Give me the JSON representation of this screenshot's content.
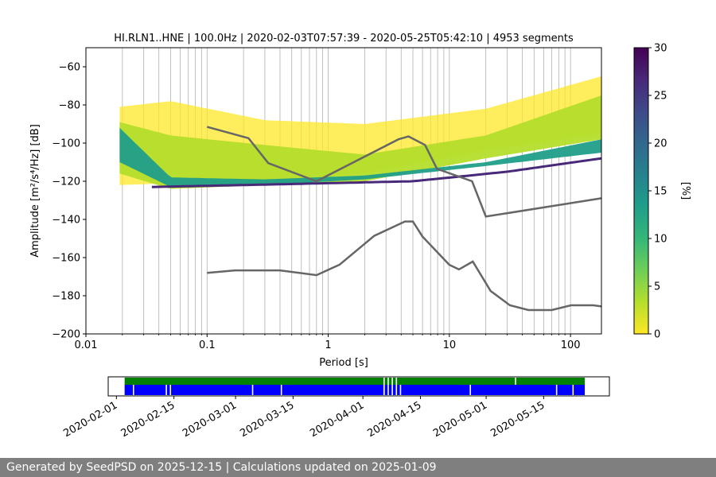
{
  "chart_data": [
    {
      "type": "heatmap",
      "title": "HI.RLN1..HNE | 100.0Hz | 2020-02-03T07:57:39 - 2020-05-25T05:42:10 | 4953 segments",
      "xlabel": "Period [s]",
      "ylabel": "Amplitude [m²/s⁴/Hz] [dB]",
      "x_scale": "log",
      "xlim": [
        0.01,
        180
      ],
      "ylim": [
        -200,
        -50
      ],
      "x_ticks": [
        {
          "value": 0.01,
          "label": "0.01"
        },
        {
          "value": 0.1,
          "label": "0.1"
        },
        {
          "value": 1,
          "label": "1"
        },
        {
          "value": 10,
          "label": "10"
        },
        {
          "value": 100,
          "label": "100"
        }
      ],
      "y_ticks": [
        {
          "value": -60,
          "label": "−60"
        },
        {
          "value": -80,
          "label": "−80"
        },
        {
          "value": -100,
          "label": "−100"
        },
        {
          "value": -120,
          "label": "−120"
        },
        {
          "value": -140,
          "label": "−140"
        },
        {
          "value": -160,
          "label": "−160"
        },
        {
          "value": -180,
          "label": "−180"
        },
        {
          "value": -200,
          "label": "−200"
        }
      ],
      "grid": "vertical lines at 1-2-3-...-9 periods per decade",
      "colorbar": {
        "label": "[%]",
        "range": [
          0,
          30
        ],
        "ticks": [
          {
            "value": 0,
            "label": "0"
          },
          {
            "value": 5,
            "label": "5"
          },
          {
            "value": 10,
            "label": "10"
          },
          {
            "value": 15,
            "label": "15"
          },
          {
            "value": 20,
            "label": "20"
          },
          {
            "value": 25,
            "label": "25"
          },
          {
            "value": 30,
            "label": "30"
          }
        ],
        "colormap": "viridis_r",
        "stops": [
          "#fde725",
          "#b5de2b",
          "#6ece58",
          "#35b779",
          "#1f9e89",
          "#26828e",
          "#31688e",
          "#3e4989",
          "#482878",
          "#440154"
        ]
      },
      "heatmap_bands": [
        {
          "level": "sparse (~1%)",
          "period": [
            0.019,
            180
          ],
          "lower_db": [
            -122,
            -121,
            -120,
            -116,
            -104,
            -95
          ],
          "upper_db": [
            -81,
            -78,
            -88,
            -90,
            -82,
            -65
          ]
        },
        {
          "level": "low (~3%)",
          "period": [
            0.019,
            180
          ],
          "lower_db": [
            -116,
            -124,
            -122,
            -120,
            -108,
            -98
          ],
          "upper_db": [
            -89,
            -96,
            -101,
            -106,
            -96,
            -75
          ]
        },
        {
          "level": "medium (~12%)",
          "period": [
            0.019,
            180
          ],
          "lower_db": [
            -110,
            -123,
            -122,
            -119,
            -112,
            -105
          ],
          "upper_db": [
            -92,
            -118,
            -119,
            -117,
            -110,
            -98
          ]
        },
        {
          "level": "mode (~28%)",
          "period": [
            0.035,
            180
          ],
          "db": [
            -123,
            -122,
            -121,
            -120,
            -115,
            -108
          ]
        }
      ],
      "noise_models": [
        {
          "name": "",
          "role": "NHNM",
          "x": [
            0.1,
            0.22,
            0.32,
            0.8,
            3.8,
            4.6,
            6.3,
            7.9,
            15.4,
            20.0,
            180.0
          ],
          "y": [
            -91.5,
            -97.4,
            -110.5,
            -120.0,
            -98.0,
            -96.5,
            -101.0,
            -113.5,
            -120.0,
            -138.5,
            -128.9
          ]
        },
        {
          "name": "",
          "role": "NLNM",
          "x": [
            0.1,
            0.17,
            0.4,
            0.8,
            1.24,
            2.4,
            4.3,
            5.0,
            6.0,
            10.0,
            12.0,
            15.6,
            21.9,
            31.6,
            45.0,
            70.0,
            101.0,
            154.0,
            180.0
          ],
          "y": [
            -168.0,
            -166.7,
            -166.7,
            -169.2,
            -163.7,
            -148.6,
            -141.1,
            -141.1,
            -149.0,
            -163.8,
            -166.2,
            -162.1,
            -177.5,
            -185.0,
            -187.5,
            -187.5,
            -185.0,
            -185.0,
            -185.6
          ]
        }
      ]
    },
    {
      "type": "timeline",
      "x_ticks": [
        "2020-02-01",
        "2020-02-15",
        "2020-03-01",
        "2020-03-15",
        "2020-04-01",
        "2020-04-15",
        "2020-05-01",
        "2020-05-15"
      ],
      "xlim": [
        "2020-01-30",
        "2020-05-31"
      ],
      "rows": [
        {
          "name": "",
          "color": "#008000",
          "start": "2020-02-03",
          "end": "2020-05-25",
          "gaps": [
            "2020-04-06",
            "2020-04-07",
            "2020-04-08",
            "2020-04-09",
            "2020-05-08"
          ]
        },
        {
          "name": "",
          "color": "#0000ff",
          "start": "2020-02-03",
          "end": "2020-05-25",
          "gaps": [
            "2020-02-05",
            "2020-02-13",
            "2020-02-14",
            "2020-03-05",
            "2020-03-12",
            "2020-04-06",
            "2020-04-07",
            "2020-04-08",
            "2020-04-09",
            "2020-04-10",
            "2020-04-27",
            "2020-05-18",
            "2020-05-22"
          ]
        }
      ]
    }
  ],
  "footer": {
    "text": "Generated by SeedPSD on 2025-12-15 | Calculations updated on 2025-01-09"
  }
}
